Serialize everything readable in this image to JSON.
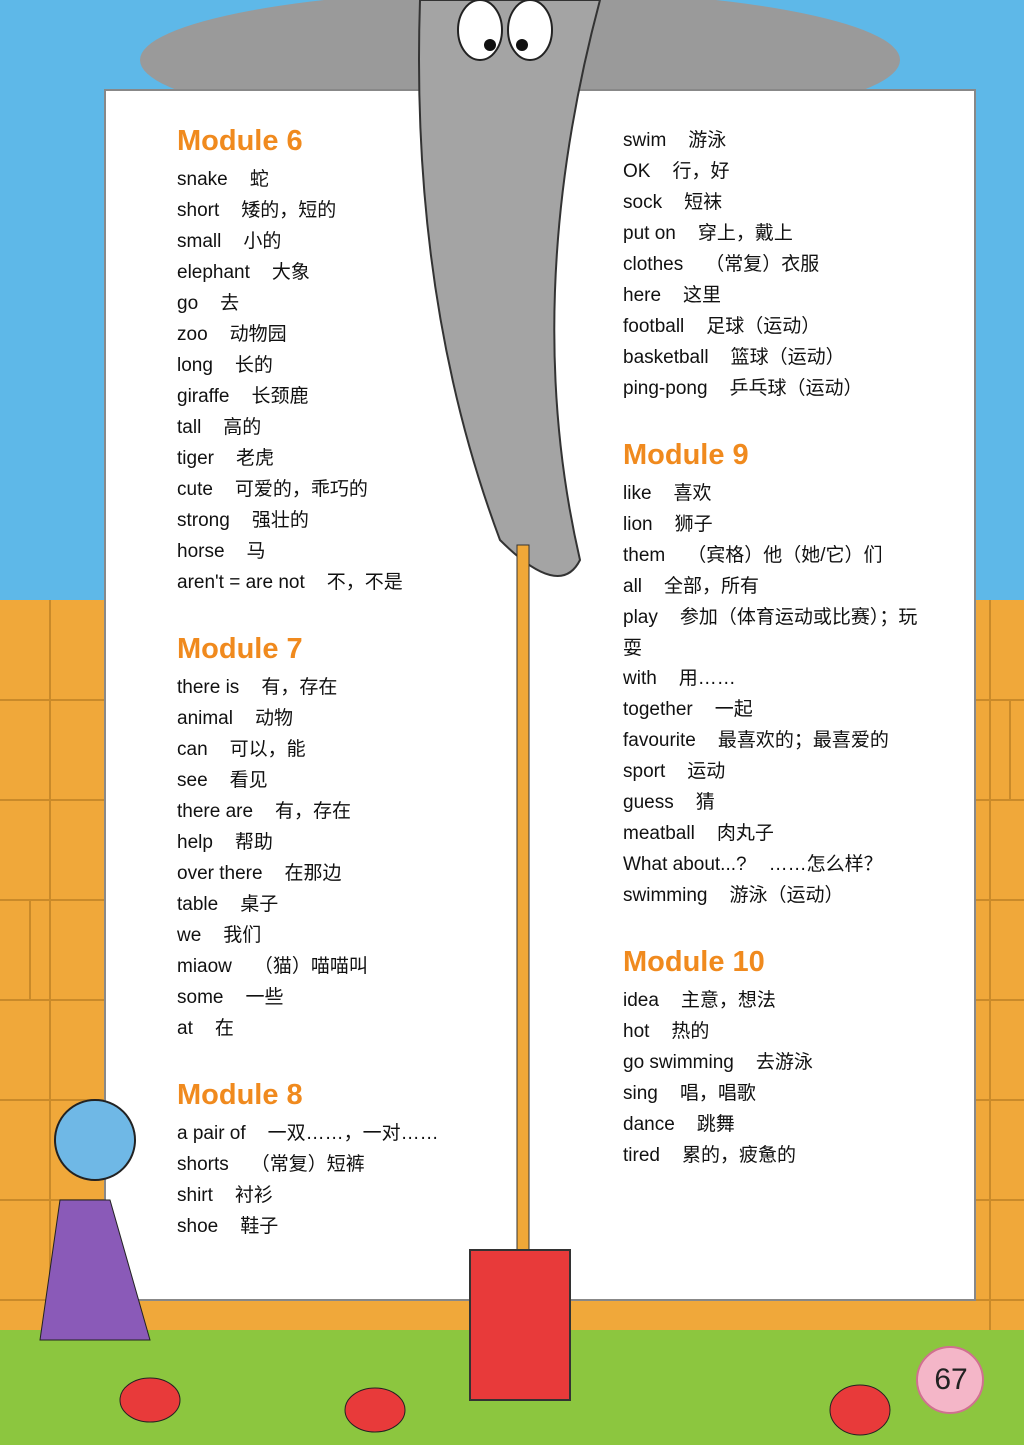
{
  "modules": [
    {
      "title": "Module 6",
      "entries": [
        {
          "word": "snake",
          "meaning": "蛇"
        },
        {
          "word": "short",
          "meaning": "矮的，短的"
        },
        {
          "word": "small",
          "meaning": "小的"
        },
        {
          "word": "elephant",
          "meaning": "大象"
        },
        {
          "word": "go",
          "meaning": "去"
        },
        {
          "word": "zoo",
          "meaning": "动物园"
        },
        {
          "word": "long",
          "meaning": "长的"
        },
        {
          "word": "giraffe",
          "meaning": "长颈鹿"
        },
        {
          "word": "tall",
          "meaning": "高的"
        },
        {
          "word": "tiger",
          "meaning": "老虎"
        },
        {
          "word": "cute",
          "meaning": "可爱的，乖巧的"
        },
        {
          "word": "strong",
          "meaning": "强壮的"
        },
        {
          "word": "horse",
          "meaning": "马"
        },
        {
          "word": "aren't = are not",
          "meaning": "不，不是"
        }
      ]
    },
    {
      "title": "Module 7",
      "entries": [
        {
          "word": "there is",
          "meaning": "有，存在"
        },
        {
          "word": "animal",
          "meaning": "动物"
        },
        {
          "word": "can",
          "meaning": "可以，能"
        },
        {
          "word": "see",
          "meaning": "看见"
        },
        {
          "word": "there are",
          "meaning": "有，存在"
        },
        {
          "word": "help",
          "meaning": "帮助"
        },
        {
          "word": "over there",
          "meaning": "在那边"
        },
        {
          "word": "table",
          "meaning": "桌子"
        },
        {
          "word": "we",
          "meaning": "我们"
        },
        {
          "word": "miaow",
          "meaning": "（猫）喵喵叫"
        },
        {
          "word": "some",
          "meaning": "一些"
        },
        {
          "word": "at",
          "meaning": "在"
        }
      ]
    },
    {
      "title": "Module 8",
      "entries": [
        {
          "word": "a pair of",
          "meaning": "一双……，一对……"
        },
        {
          "word": "shorts",
          "meaning": "（常复）短裤"
        },
        {
          "word": "shirt",
          "meaning": "衬衫"
        },
        {
          "word": "shoe",
          "meaning": "鞋子"
        },
        {
          "word": "swim",
          "meaning": "游泳"
        },
        {
          "word": "OK",
          "meaning": "行，好"
        },
        {
          "word": "sock",
          "meaning": "短袜"
        },
        {
          "word": "put on",
          "meaning": "穿上，戴上"
        },
        {
          "word": "clothes",
          "meaning": "（常复）衣服"
        },
        {
          "word": "here",
          "meaning": "这里"
        },
        {
          "word": "football",
          "meaning": "足球（运动）"
        },
        {
          "word": "basketball",
          "meaning": "篮球（运动）"
        },
        {
          "word": "ping-pong",
          "meaning": "乒乓球（运动）"
        }
      ]
    },
    {
      "title": "Module 9",
      "entries": [
        {
          "word": "like",
          "meaning": "喜欢"
        },
        {
          "word": "lion",
          "meaning": "狮子"
        },
        {
          "word": "them",
          "meaning": "（宾格）他（她/它）们"
        },
        {
          "word": "all",
          "meaning": "全部，所有"
        },
        {
          "word": "play",
          "meaning": "参加（体育运动或比赛）；玩耍"
        },
        {
          "word": "with",
          "meaning": "用……"
        },
        {
          "word": "together",
          "meaning": "一起"
        },
        {
          "word": "favourite",
          "meaning": "最喜欢的；最喜爱的"
        },
        {
          "word": "sport",
          "meaning": "运动"
        },
        {
          "word": "guess",
          "meaning": "猜"
        },
        {
          "word": "meatball",
          "meaning": "肉丸子"
        },
        {
          "word": "What about...?",
          "meaning": "……怎么样？"
        },
        {
          "word": "swimming",
          "meaning": "游泳（运动）"
        }
      ]
    },
    {
      "title": "Module 10",
      "entries": [
        {
          "word": "idea",
          "meaning": "主意，想法"
        },
        {
          "word": "hot",
          "meaning": "热的"
        },
        {
          "word": "go swimming",
          "meaning": "去游泳"
        },
        {
          "word": "sing",
          "meaning": "唱，唱歌"
        },
        {
          "word": "dance",
          "meaning": "跳舞"
        },
        {
          "word": "tired",
          "meaning": "累的，疲惫的"
        }
      ]
    }
  ],
  "page_number": "67"
}
